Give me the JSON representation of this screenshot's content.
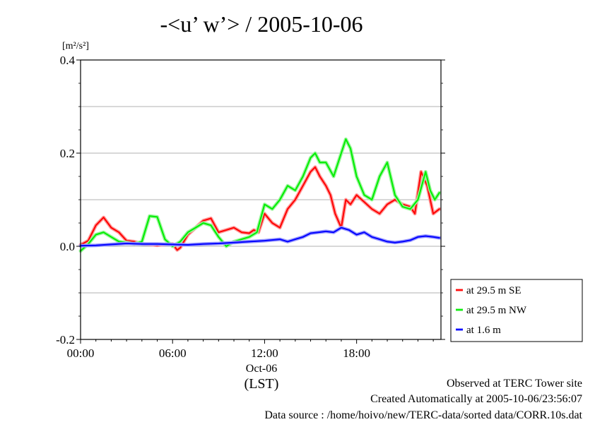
{
  "chart_data": {
    "type": "line",
    "title": "-<u’ w’> / 2005-10-06",
    "ylabel_unit": "[m²/s²]",
    "ylim": [
      -0.2,
      0.4
    ],
    "yticks": [
      -0.2,
      0.0,
      0.2,
      0.4
    ],
    "ytick_labels": [
      "-0.2",
      "0.0",
      "0.2",
      "0.4"
    ],
    "y_minor_gridlines": [
      -0.1,
      0.1,
      0.3
    ],
    "xlim_hours": [
      0,
      23.5
    ],
    "xticks_hours": [
      0,
      6,
      12,
      18
    ],
    "xtick_labels": [
      "00:00",
      "06:00",
      "12:00",
      "18:00"
    ],
    "x_date_label": "Oct-06",
    "x_unit_label": "(LST)",
    "grid": true,
    "legend_position": "right, below plot",
    "series": [
      {
        "name": "at 29.5 m SE",
        "color": "#ff0000",
        "x": [
          0,
          0.5,
          1.0,
          1.5,
          2.0,
          2.5,
          3.0,
          3.5,
          4.0,
          4.5,
          5.0,
          5.5,
          6.0,
          6.3,
          6.5,
          7.0,
          7.5,
          8.0,
          8.5,
          9.0,
          9.5,
          10.0,
          10.5,
          11.0,
          11.3,
          11.6,
          12.0,
          12.5,
          13.0,
          13.5,
          14.0,
          14.5,
          15.0,
          15.3,
          15.6,
          16.0,
          16.3,
          16.6,
          17.0,
          17.3,
          17.6,
          18.0,
          18.5,
          19.0,
          19.5,
          20.0,
          20.5,
          21.0,
          21.5,
          21.8,
          22.2,
          22.6,
          23.0,
          23.4
        ],
        "y": [
          0.003,
          0.012,
          0.045,
          0.062,
          0.04,
          0.03,
          0.012,
          0.01,
          0.005,
          0.004,
          0.002,
          0.004,
          0.005,
          -0.008,
          -0.003,
          0.025,
          0.04,
          0.055,
          0.06,
          0.03,
          0.035,
          0.04,
          0.03,
          0.028,
          0.035,
          0.03,
          0.07,
          0.05,
          0.04,
          0.08,
          0.1,
          0.13,
          0.16,
          0.17,
          0.15,
          0.13,
          0.11,
          0.07,
          0.04,
          0.1,
          0.09,
          0.11,
          0.095,
          0.08,
          0.07,
          0.09,
          0.1,
          0.09,
          0.085,
          0.07,
          0.16,
          0.13,
          0.07,
          0.08
        ]
      },
      {
        "name": "at 29.5 m NW",
        "color": "#00ee00",
        "x": [
          0,
          0.5,
          1.0,
          1.5,
          2.0,
          2.5,
          3.0,
          3.5,
          4.0,
          4.5,
          5.0,
          5.5,
          6.0,
          6.5,
          7.0,
          7.5,
          8.0,
          8.5,
          9.0,
          9.5,
          10.0,
          10.5,
          11.0,
          11.5,
          12.0,
          12.5,
          13.0,
          13.5,
          14.0,
          14.5,
          15.0,
          15.3,
          15.6,
          16.0,
          16.5,
          17.0,
          17.3,
          17.6,
          18.0,
          18.5,
          19.0,
          19.5,
          20.0,
          20.5,
          21.0,
          21.5,
          22.0,
          22.5,
          22.8,
          23.1,
          23.4
        ],
        "y": [
          -0.01,
          0.005,
          0.025,
          0.03,
          0.02,
          0.01,
          0.008,
          0.005,
          0.01,
          0.065,
          0.063,
          0.015,
          0.0,
          0.01,
          0.03,
          0.04,
          0.05,
          0.045,
          0.02,
          0.0,
          0.01,
          0.015,
          0.02,
          0.03,
          0.09,
          0.08,
          0.1,
          0.13,
          0.12,
          0.15,
          0.19,
          0.2,
          0.18,
          0.18,
          0.15,
          0.2,
          0.23,
          0.21,
          0.15,
          0.11,
          0.1,
          0.15,
          0.18,
          0.11,
          0.085,
          0.08,
          0.1,
          0.16,
          0.12,
          0.1,
          0.115
        ]
      },
      {
        "name": "at 1.6 m",
        "color": "#0000ff",
        "x": [
          0,
          1.0,
          2.0,
          3.0,
          4.0,
          5.0,
          6.0,
          7.0,
          8.0,
          9.0,
          10.0,
          11.0,
          12.0,
          13.0,
          13.5,
          14.0,
          14.5,
          15.0,
          15.5,
          16.0,
          16.5,
          17.0,
          17.5,
          18.0,
          18.5,
          19.0,
          19.5,
          20.0,
          20.5,
          21.0,
          21.5,
          22.0,
          22.5,
          23.0,
          23.4
        ],
        "y": [
          0.001,
          0.002,
          0.004,
          0.006,
          0.005,
          0.005,
          0.004,
          0.003,
          0.005,
          0.006,
          0.008,
          0.01,
          0.012,
          0.015,
          0.01,
          0.015,
          0.02,
          0.028,
          0.03,
          0.032,
          0.03,
          0.04,
          0.035,
          0.025,
          0.03,
          0.02,
          0.015,
          0.01,
          0.008,
          0.01,
          0.013,
          0.02,
          0.022,
          0.02,
          0.018
        ]
      }
    ]
  },
  "footer": {
    "line1": "Observed at TERC Tower site",
    "line2": "Created Automatically at 2005-10-06/23:56:07",
    "line3": "Data source : /home/hoivo/new/TERC-data/sorted data/CORR.10s.dat"
  }
}
